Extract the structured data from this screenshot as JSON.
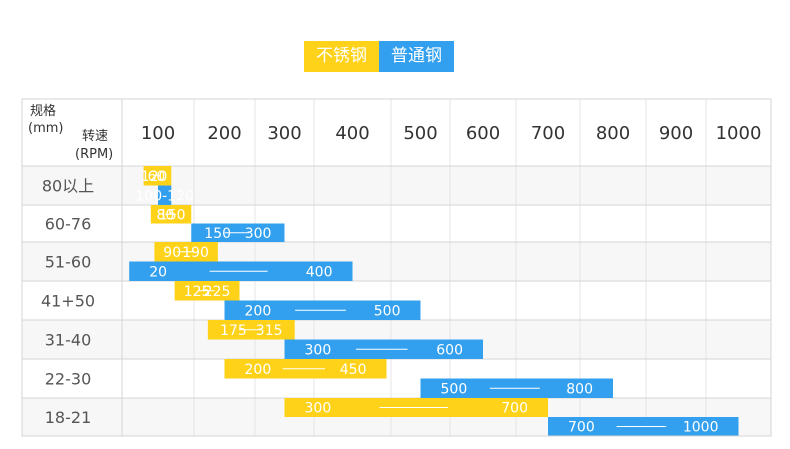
{
  "colors": {
    "stainless": "#ffd21a",
    "ordinary": "#33a0ef",
    "grid": "#d4d4d4",
    "grid_light": "#e6e6e6",
    "row_band": "#f7f7f7"
  },
  "legend": {
    "stainless": "不锈钢",
    "ordinary": "普通钢"
  },
  "header": {
    "spec_label": "规格",
    "spec_unit": "(mm)",
    "speed_label": "转速",
    "speed_unit": "(RPM)"
  },
  "chart_data": {
    "type": "bar",
    "orientation": "horizontal-range",
    "x_ticks": [
      "100",
      "200",
      "300",
      "400",
      "500",
      "600",
      "700",
      "800",
      "900",
      "1000"
    ],
    "x_tick_values": [
      100,
      200,
      300,
      400,
      500,
      600,
      700,
      800,
      900,
      1000
    ],
    "categories": [
      "80以上",
      "60-76",
      "51-60",
      "41+50",
      "31-40",
      "22-30",
      "18-21"
    ],
    "series": [
      {
        "name": "不锈钢",
        "ranges": [
          [
            60,
            120
          ],
          [
            80,
            150
          ],
          [
            90,
            190
          ],
          [
            125,
            225
          ],
          [
            175,
            315
          ],
          [
            200,
            450
          ],
          [
            300,
            700
          ]
        ],
        "labels": [
          [
            "60",
            "120"
          ],
          [
            "80",
            "150"
          ],
          [
            "90",
            "190"
          ],
          [
            "125",
            "225"
          ],
          [
            "175",
            "315"
          ],
          [
            "200",
            "450"
          ],
          [
            "300",
            "700"
          ]
        ]
      },
      {
        "name": "普通钢",
        "ranges": [
          [
            100,
            120
          ],
          [
            150,
            300
          ],
          [
            20,
            400
          ],
          [
            200,
            500
          ],
          [
            300,
            600
          ],
          [
            500,
            800
          ],
          [
            700,
            1000
          ]
        ],
        "labels": [
          [
            "100-120"
          ],
          [
            "150",
            "300"
          ],
          [
            "20",
            "400"
          ],
          [
            "200",
            "500"
          ],
          [
            "300",
            "600"
          ],
          [
            "500",
            "800"
          ],
          [
            "700",
            "1000"
          ]
        ]
      }
    ]
  }
}
